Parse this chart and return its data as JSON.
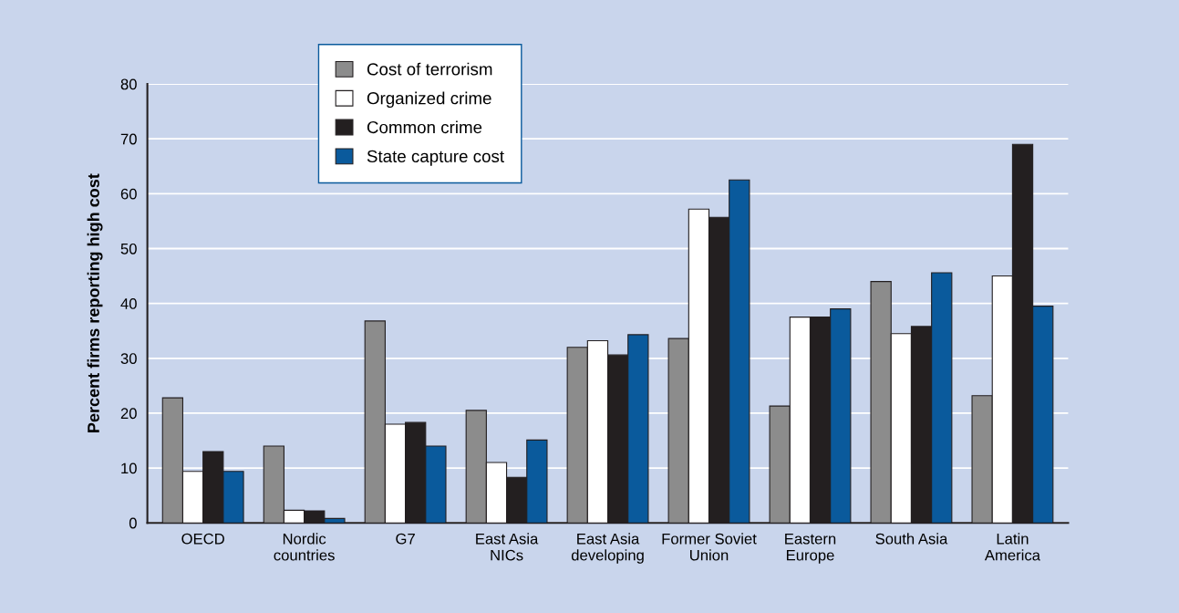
{
  "chart_data": {
    "type": "bar",
    "ylabel": "Percent firms reporting high cost",
    "categories": [
      "OECD",
      "Nordic\ncountries",
      "G7",
      "East Asia\nNICs",
      "East Asia\ndeveloping",
      "Former Soviet\nUnion",
      "Eastern\nEurope",
      "South Asia",
      "Latin\nAmerica"
    ],
    "series": [
      {
        "name": "Cost of terrorism",
        "color": "#8c8c8c",
        "values": [
          22.8,
          14,
          36.8,
          20.5,
          32,
          33.6,
          21.3,
          44,
          23.2
        ]
      },
      {
        "name": "Organized crime",
        "color": "#ffffff",
        "values": [
          9.4,
          2.3,
          18,
          11,
          33.2,
          57.2,
          37.5,
          34.5,
          45
        ]
      },
      {
        "name": "Common crime",
        "color": "#231f20",
        "values": [
          13,
          2.2,
          18.3,
          8.3,
          30.6,
          55.7,
          37.5,
          35.8,
          69
        ]
      },
      {
        "name": "State capture cost",
        "color": "#0a5a9c",
        "values": [
          9.4,
          0.8,
          14,
          15.1,
          34.3,
          62.5,
          39,
          45.6,
          39.5
        ]
      }
    ],
    "ylim": [
      0,
      80
    ],
    "yticks": [
      0,
      10,
      20,
      30,
      40,
      50,
      60,
      70,
      80
    ],
    "grid": "y",
    "legend": "top left"
  }
}
